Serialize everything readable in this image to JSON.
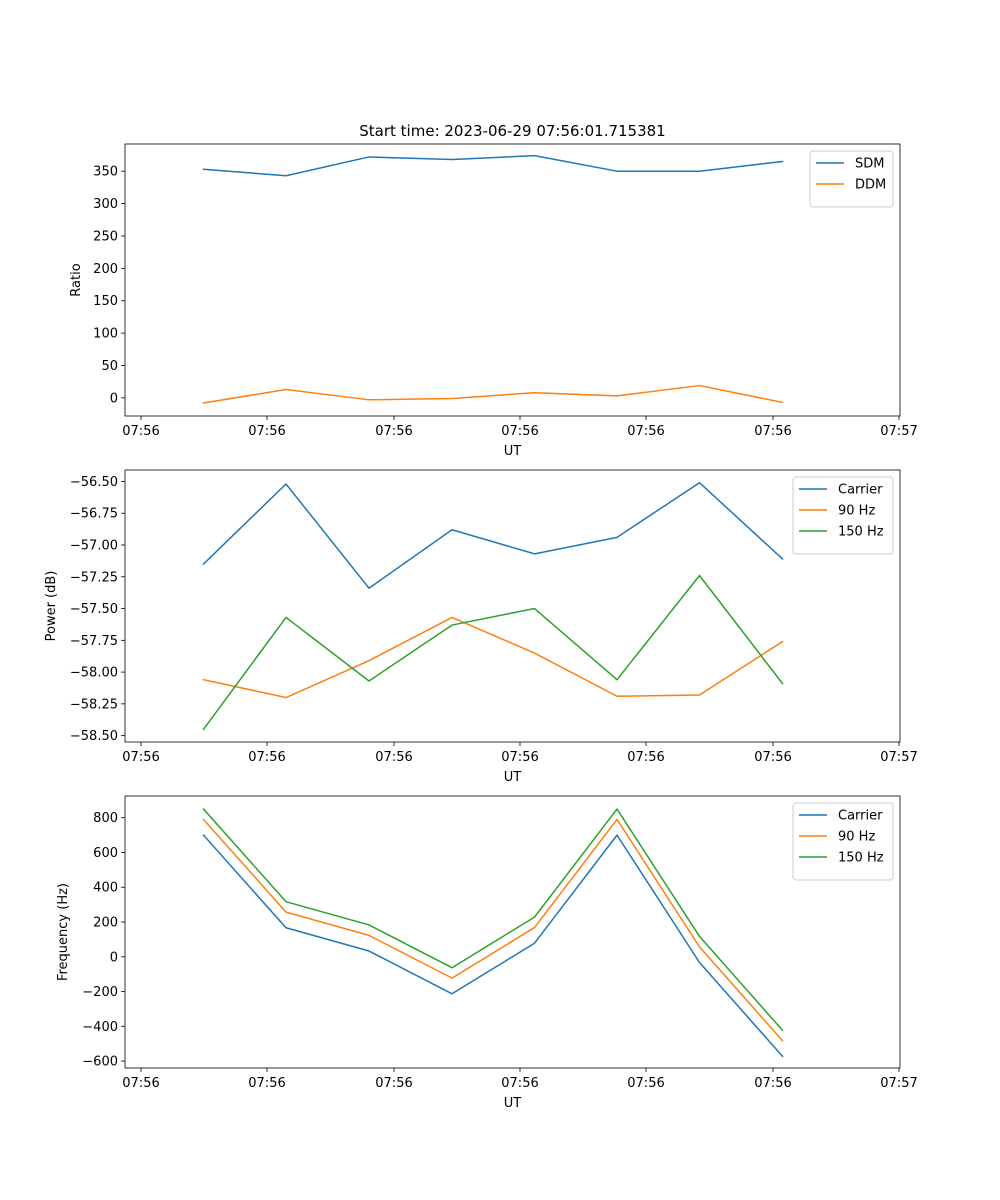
{
  "title": "Start time: 2023-06-29 07:56:01.715381",
  "colors": {
    "c0": "#1f77b4",
    "c1": "#ff7f0e",
    "c2": "#2ca02c"
  },
  "chart_data": [
    {
      "type": "line",
      "xlabel": "UT",
      "ylabel": "Ratio",
      "x_tick_labels": [
        "07:56",
        "07:56",
        "07:56",
        "07:56",
        "07:56",
        "07:56",
        "07:57"
      ],
      "y_ticks": [
        0,
        50,
        100,
        150,
        200,
        250,
        300,
        350
      ],
      "ylim": [
        -28,
        392
      ],
      "legend_position": "upper right",
      "series": [
        {
          "name": "SDM",
          "values": [
            353,
            343,
            372,
            368,
            374,
            350,
            350,
            365
          ]
        },
        {
          "name": "DDM",
          "values": [
            -8,
            13,
            -3,
            -1,
            8,
            3,
            19,
            -7
          ]
        }
      ]
    },
    {
      "type": "line",
      "xlabel": "UT",
      "ylabel": "Power (dB)",
      "x_tick_labels": [
        "07:56",
        "07:56",
        "07:56",
        "07:56",
        "07:56",
        "07:56",
        "07:57"
      ],
      "y_ticks": [
        -58.5,
        -58.25,
        -58.0,
        -57.75,
        -57.5,
        -57.25,
        -57.0,
        -56.75,
        -56.5
      ],
      "y_tick_labels": [
        "−58.50",
        "−58.25",
        "−58.00",
        "−57.75",
        "−57.50",
        "−57.25",
        "−57.00",
        "−56.75",
        "−56.50"
      ],
      "ylim": [
        -58.55,
        -56.41
      ],
      "legend_position": "upper right",
      "series": [
        {
          "name": "Carrier",
          "values": [
            -57.15,
            -56.52,
            -57.34,
            -56.88,
            -57.07,
            -56.94,
            -56.51,
            -57.11
          ]
        },
        {
          "name": "90 Hz",
          "values": [
            -58.06,
            -58.2,
            -57.91,
            -57.57,
            -57.85,
            -58.19,
            -58.18,
            -57.76
          ]
        },
        {
          "name": "150 Hz",
          "values": [
            -58.45,
            -57.57,
            -58.07,
            -57.63,
            -57.5,
            -58.06,
            -57.24,
            -58.09
          ]
        }
      ]
    },
    {
      "type": "line",
      "xlabel": "UT",
      "ylabel": "Frequency (Hz)",
      "x_tick_labels": [
        "07:56",
        "07:56",
        "07:56",
        "07:56",
        "07:56",
        "07:56",
        "07:57"
      ],
      "y_ticks": [
        -600,
        -400,
        -200,
        0,
        200,
        400,
        600,
        800
      ],
      "y_tick_labels": [
        "−600",
        "−400",
        "−200",
        "0",
        "200",
        "400",
        "600",
        "800"
      ],
      "ylim": [
        -640,
        925
      ],
      "legend_position": "upper right",
      "series": [
        {
          "name": "Carrier",
          "values": [
            700,
            167,
            33,
            -213,
            78,
            700,
            -33,
            -573
          ]
        },
        {
          "name": "90 Hz",
          "values": [
            790,
            257,
            123,
            -123,
            168,
            790,
            57,
            -483
          ]
        },
        {
          "name": "150 Hz",
          "values": [
            850,
            317,
            183,
            -63,
            228,
            850,
            117,
            -423
          ]
        }
      ]
    }
  ]
}
